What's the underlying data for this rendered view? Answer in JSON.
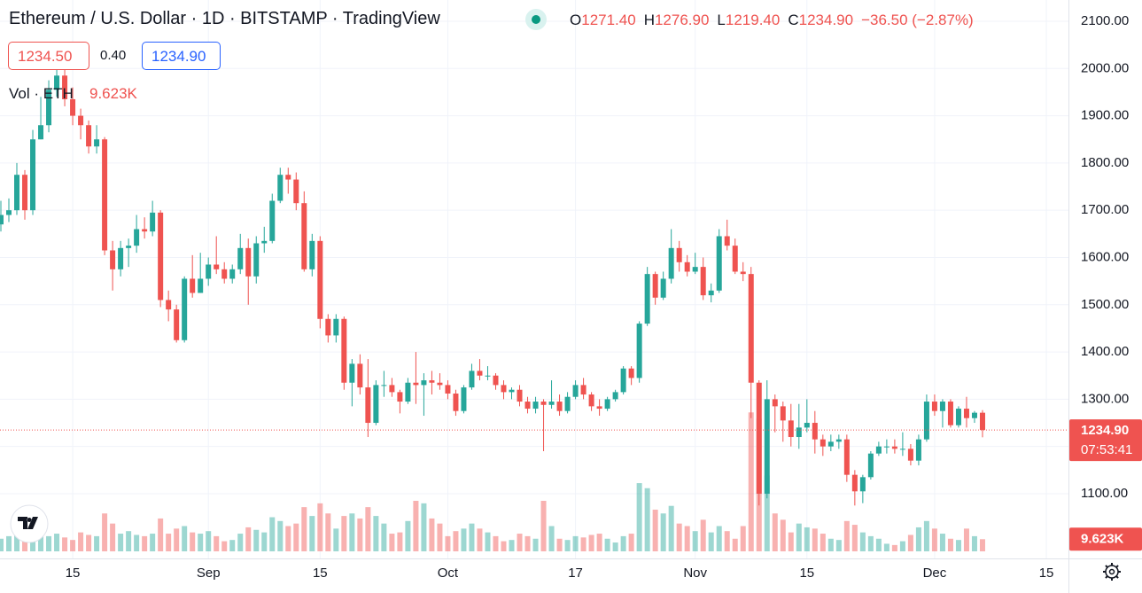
{
  "chart_data": {
    "type": "candlestick",
    "title": "Ethereum / U.S. Dollar · 1D · BITSTAMP · TradingView",
    "legend": [
      {
        "key": "O",
        "value": "1271.40"
      },
      {
        "key": "H",
        "value": "1276.90"
      },
      {
        "key": "L",
        "value": "1219.40"
      },
      {
        "key": "C",
        "value": "1234.90"
      }
    ],
    "change": "−36.50 (−2.87%)",
    "sell_price": "1234.50",
    "spread": "0.40",
    "buy_price": "1234.90",
    "volume_title": "Vol · ETH",
    "volume_last": "9.623K",
    "last_price": {
      "value": 1234.9,
      "label": "1234.90"
    },
    "countdown": "07:53:41",
    "up_color": "#26a69a",
    "down_color": "#ef5350",
    "grid": true,
    "xlim": [
      -0.11,
      133.77
    ],
    "xticks": [
      {
        "value": 9,
        "label": "15"
      },
      {
        "value": 26,
        "label": "Sep"
      },
      {
        "value": 40,
        "label": "15"
      },
      {
        "value": 56,
        "label": "Oct"
      },
      {
        "value": 72,
        "label": "17"
      },
      {
        "value": 87,
        "label": "Nov"
      },
      {
        "value": 101,
        "label": "15"
      },
      {
        "value": 117,
        "label": "Dec"
      },
      {
        "value": 131,
        "label": "15"
      }
    ],
    "ylim": [
      963,
      2145
    ],
    "yticks": [
      {
        "value": 1100,
        "label": "1100.00"
      },
      {
        "value": 1200,
        "label": "1200.00"
      },
      {
        "value": 1300,
        "label": "1300.00"
      },
      {
        "value": 1400,
        "label": "1400.00"
      },
      {
        "value": 1500,
        "label": "1500.00"
      },
      {
        "value": 1600,
        "label": "1600.00"
      },
      {
        "value": 1700,
        "label": "1700.00"
      },
      {
        "value": 1800,
        "label": "1800.00"
      },
      {
        "value": 1900,
        "label": "1900.00"
      },
      {
        "value": 2000,
        "label": "2000.00"
      },
      {
        "value": 2100,
        "label": "2100.00"
      }
    ],
    "volume_ylim": [
      0,
      160000
    ],
    "open": [
      1670,
      1690,
      1700,
      1775,
      1700,
      1850,
      1880,
      1955,
      1985,
      1935,
      1900,
      1880,
      1835,
      1850,
      1615,
      1575,
      1620,
      1625,
      1660,
      1655,
      1695,
      1510,
      1490,
      1425,
      1555,
      1525,
      1555,
      1585,
      1575,
      1555,
      1575,
      1620,
      1560,
      1630,
      1635,
      1720,
      1775,
      1765,
      1715,
      1575,
      1635,
      1470,
      1435,
      1470,
      1335,
      1375,
      1325,
      1250,
      1330,
      1330,
      1315,
      1295,
      1335,
      1330,
      1340,
      1335,
      1330,
      1312,
      1275,
      1325,
      1360,
      1350,
      1350,
      1330,
      1315,
      1320,
      1295,
      1280,
      1295,
      1288,
      1295,
      1275,
      1305,
      1330,
      1310,
      1285,
      1280,
      1300,
      1315,
      1365,
      1345,
      1460,
      1565,
      1515,
      1555,
      1620,
      1590,
      1570,
      1580,
      1520,
      1530,
      1645,
      1625,
      1570,
      1565,
      1335,
      1100,
      1300,
      1285,
      1255,
      1220,
      1240,
      1250,
      1215,
      1200,
      1210,
      1215,
      1140,
      1105,
      1135,
      1185,
      1200,
      1200,
      1195,
      1195,
      1170,
      1215,
      1295,
      1275,
      1295,
      1245,
      1280,
      1260,
      1271.4
    ],
    "high": [
      1720,
      1725,
      1800,
      1785,
      1870,
      1940,
      1975,
      2010,
      2020,
      1960,
      1915,
      1890,
      1880,
      1855,
      1635,
      1635,
      1640,
      1690,
      1685,
      1720,
      1700,
      1530,
      1500,
      1560,
      1605,
      1610,
      1600,
      1645,
      1590,
      1585,
      1650,
      1640,
      1645,
      1665,
      1735,
      1790,
      1790,
      1780,
      1740,
      1650,
      1645,
      1480,
      1480,
      1475,
      1385,
      1395,
      1385,
      1340,
      1360,
      1345,
      1320,
      1345,
      1400,
      1355,
      1360,
      1355,
      1340,
      1320,
      1330,
      1375,
      1385,
      1370,
      1355,
      1340,
      1325,
      1330,
      1305,
      1305,
      1300,
      1340,
      1310,
      1315,
      1340,
      1345,
      1315,
      1300,
      1305,
      1320,
      1370,
      1370,
      1465,
      1580,
      1570,
      1570,
      1660,
      1635,
      1605,
      1610,
      1600,
      1545,
      1660,
      1680,
      1640,
      1590,
      1580,
      1340,
      1340,
      1310,
      1295,
      1290,
      1290,
      1300,
      1275,
      1225,
      1225,
      1225,
      1225,
      1150,
      1140,
      1190,
      1210,
      1215,
      1215,
      1230,
      1205,
      1225,
      1310,
      1310,
      1300,
      1300,
      1285,
      1305,
      1275,
      1276.9
    ],
    "low": [
      1655,
      1675,
      1690,
      1680,
      1690,
      1850,
      1865,
      1940,
      1920,
      1880,
      1850,
      1820,
      1820,
      1605,
      1530,
      1560,
      1580,
      1610,
      1640,
      1645,
      1495,
      1465,
      1420,
      1420,
      1515,
      1525,
      1540,
      1565,
      1545,
      1545,
      1565,
      1500,
      1545,
      1610,
      1630,
      1715,
      1735,
      1700,
      1570,
      1560,
      1450,
      1420,
      1420,
      1320,
      1285,
      1310,
      1220,
      1245,
      1305,
      1305,
      1270,
      1290,
      1290,
      1265,
      1310,
      1320,
      1300,
      1265,
      1270,
      1320,
      1340,
      1340,
      1320,
      1300,
      1300,
      1285,
      1270,
      1270,
      1190,
      1280,
      1265,
      1270,
      1300,
      1300,
      1275,
      1265,
      1275,
      1295,
      1310,
      1330,
      1335,
      1455,
      1500,
      1510,
      1545,
      1570,
      1560,
      1565,
      1510,
      1505,
      1525,
      1615,
      1565,
      1550,
      1260,
      1075,
      1090,
      1230,
      1210,
      1200,
      1195,
      1230,
      1185,
      1180,
      1190,
      1195,
      1125,
      1075,
      1080,
      1130,
      1180,
      1185,
      1185,
      1180,
      1160,
      1160,
      1210,
      1265,
      1240,
      1240,
      1240,
      1240,
      1250,
      1219.4
    ],
    "close": [
      1690,
      1700,
      1775,
      1700,
      1850,
      1880,
      1955,
      1985,
      1935,
      1900,
      1880,
      1835,
      1850,
      1615,
      1575,
      1620,
      1625,
      1660,
      1655,
      1695,
      1510,
      1490,
      1425,
      1555,
      1525,
      1555,
      1585,
      1575,
      1555,
      1575,
      1620,
      1560,
      1630,
      1635,
      1720,
      1775,
      1765,
      1715,
      1575,
      1635,
      1470,
      1435,
      1470,
      1335,
      1375,
      1325,
      1250,
      1330,
      1330,
      1315,
      1295,
      1335,
      1330,
      1340,
      1335,
      1330,
      1312,
      1275,
      1325,
      1360,
      1350,
      1350,
      1330,
      1315,
      1320,
      1295,
      1280,
      1295,
      1288,
      1295,
      1275,
      1305,
      1330,
      1310,
      1285,
      1280,
      1300,
      1315,
      1365,
      1345,
      1460,
      1565,
      1515,
      1555,
      1620,
      1590,
      1570,
      1580,
      1520,
      1530,
      1645,
      1625,
      1570,
      1565,
      1335,
      1100,
      1300,
      1285,
      1255,
      1220,
      1240,
      1250,
      1215,
      1200,
      1210,
      1215,
      1140,
      1105,
      1135,
      1185,
      1200,
      1200,
      1195,
      1195,
      1170,
      1215,
      1295,
      1275,
      1295,
      1245,
      1280,
      1260,
      1271.4,
      1234.9
    ],
    "volume": [
      10000,
      12000,
      15000,
      11000,
      16000,
      13000,
      12000,
      14000,
      11000,
      9000,
      15000,
      13000,
      12000,
      30000,
      22000,
      14000,
      16000,
      13000,
      12000,
      14000,
      26000,
      14000,
      18000,
      20000,
      15000,
      14000,
      16000,
      12000,
      8000,
      9000,
      14000,
      19000,
      17000,
      15000,
      27000,
      24000,
      20000,
      22000,
      35000,
      28000,
      38000,
      30000,
      18000,
      28000,
      30000,
      26000,
      35000,
      28000,
      22000,
      14000,
      15000,
      24000,
      40000,
      38000,
      26000,
      22000,
      12000,
      16000,
      18000,
      22000,
      18000,
      15000,
      12000,
      8000,
      9000,
      14000,
      12000,
      10000,
      40000,
      20000,
      10000,
      9000,
      12000,
      11000,
      13000,
      14000,
      10000,
      7000,
      12000,
      14000,
      54000,
      50000,
      33000,
      30000,
      36000,
      22000,
      20000,
      16000,
      25000,
      15000,
      20000,
      16000,
      10000,
      20000,
      110000,
      105000,
      60000,
      30000,
      25000,
      15000,
      22000,
      19000,
      18000,
      14000,
      10000,
      9000,
      24000,
      21000,
      15000,
      12000,
      10000,
      6000,
      5000,
      8000,
      13000,
      19000,
      24000,
      18000,
      14000,
      10000,
      9000,
      18000,
      12000,
      9623
    ]
  }
}
